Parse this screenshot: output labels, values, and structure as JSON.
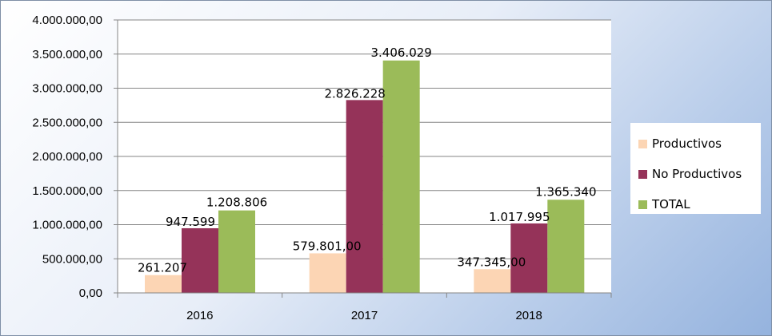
{
  "chart_data": {
    "type": "bar",
    "categories": [
      "2016",
      "2017",
      "2018"
    ],
    "series": [
      {
        "name": "Productivos",
        "color": "#fcd5b4",
        "values": [
          261207,
          579801,
          347345
        ],
        "labels": [
          "261.207",
          "579.801,00",
          "347.345,00"
        ]
      },
      {
        "name": "No Productivos",
        "color": "#953359",
        "values": [
          947599,
          2826228,
          1017995
        ],
        "labels": [
          "947.599",
          "2.826.228",
          "1.017.995"
        ]
      },
      {
        "name": "TOTAL",
        "color": "#9bbb59",
        "values": [
          1208806,
          3406029,
          1365340
        ],
        "labels": [
          "1.208.806",
          "3.406.029",
          "1.365.340"
        ]
      }
    ],
    "ylim": [
      0,
      4000000
    ],
    "yticks": [
      0,
      500000,
      1000000,
      1500000,
      2000000,
      2500000,
      3000000,
      3500000,
      4000000
    ],
    "ytick_labels": [
      "0,00",
      "500.000,00",
      "1.000.000,00",
      "1.500.000,00",
      "2.000.000,00",
      "2.500.000,00",
      "3.000.000,00",
      "3.500.000,00",
      "4.000.000,00"
    ],
    "title": "",
    "xlabel": "",
    "ylabel": "",
    "grid": true,
    "legend_position": "right"
  }
}
